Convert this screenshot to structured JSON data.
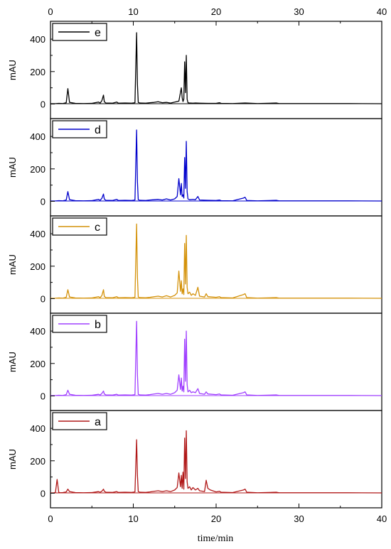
{
  "chart_data": {
    "type": "line",
    "xlabel": "time/min",
    "ylabel": "mAU",
    "xlim": [
      0,
      40
    ],
    "ylim": [
      -90,
      510
    ],
    "x_ticks": [
      0,
      10,
      20,
      30,
      40
    ],
    "x_tick_labels": [
      "0",
      "10",
      "20",
      "30",
      "40"
    ],
    "y_ticks": [
      0,
      200,
      400
    ],
    "y_tick_labels": [
      "0",
      "200",
      "400"
    ],
    "grid": false,
    "legend_placement": "top-left",
    "series": [
      {
        "name": "e",
        "color": "#000000",
        "baseline": 2,
        "x": [
          0.0,
          0.5,
          1.0,
          1.5,
          1.9,
          2.1,
          2.3,
          3.0,
          4.0,
          5.0,
          5.8,
          6.0,
          6.2,
          6.4,
          6.5,
          6.7,
          7.5,
          8.0,
          8.2,
          9.0,
          9.8,
          10.2,
          10.4,
          10.5,
          10.6,
          10.8,
          11.5,
          12.0,
          12.5,
          13.0,
          13.5,
          14.0,
          14.5,
          15.0,
          15.5,
          15.8,
          15.9,
          16.0,
          16.1,
          16.2,
          16.3,
          16.4,
          16.5,
          16.6,
          16.8,
          17.2,
          17.5,
          18.0,
          19.0,
          20.0,
          20.4,
          20.6,
          22.0,
          23.5,
          25.0,
          27.3,
          27.6,
          30.0,
          33.0,
          36.0,
          40.0
        ],
        "y": [
          2,
          2,
          4,
          3,
          8,
          95,
          10,
          4,
          3,
          4,
          12,
          6,
          20,
          55,
          14,
          6,
          5,
          12,
          5,
          6,
          5,
          8,
          440,
          120,
          10,
          6,
          5,
          8,
          10,
          14,
          8,
          10,
          6,
          12,
          18,
          100,
          40,
          15,
          30,
          260,
          70,
          300,
          30,
          8,
          6,
          5,
          6,
          5,
          4,
          4,
          8,
          4,
          3,
          6,
          3,
          6,
          3,
          3,
          3,
          3,
          2
        ]
      },
      {
        "name": "d",
        "color": "#0000cc",
        "baseline": 2,
        "x": [
          0.0,
          0.5,
          1.0,
          1.5,
          1.9,
          2.1,
          2.3,
          3.0,
          4.0,
          5.0,
          5.8,
          6.0,
          6.2,
          6.4,
          6.5,
          6.7,
          7.5,
          8.0,
          8.2,
          9.0,
          9.8,
          10.2,
          10.4,
          10.5,
          10.6,
          10.8,
          11.5,
          12.0,
          12.5,
          13.0,
          13.5,
          14.0,
          14.5,
          15.0,
          15.3,
          15.5,
          15.7,
          15.8,
          15.9,
          16.0,
          16.1,
          16.2,
          16.3,
          16.4,
          16.5,
          16.6,
          16.8,
          17.2,
          17.5,
          17.8,
          18.0,
          19.0,
          20.0,
          20.4,
          20.6,
          22.0,
          23.3,
          23.5,
          23.7,
          25.0,
          27.3,
          27.6,
          30.0,
          33.0,
          36.0,
          40.0
        ],
        "y": [
          2,
          2,
          4,
          3,
          8,
          60,
          10,
          4,
          3,
          4,
          12,
          6,
          18,
          45,
          14,
          6,
          5,
          12,
          5,
          6,
          5,
          8,
          440,
          120,
          10,
          6,
          5,
          8,
          10,
          12,
          8,
          15,
          8,
          15,
          30,
          140,
          40,
          110,
          30,
          40,
          20,
          270,
          80,
          370,
          60,
          15,
          10,
          12,
          10,
          30,
          8,
          6,
          5,
          8,
          4,
          3,
          20,
          25,
          5,
          3,
          6,
          3,
          3,
          3,
          3,
          2
        ]
      },
      {
        "name": "c",
        "color": "#d4920a",
        "baseline": 2,
        "x": [
          0.0,
          0.5,
          1.0,
          1.5,
          1.9,
          2.1,
          2.3,
          3.0,
          4.0,
          5.0,
          5.8,
          6.0,
          6.2,
          6.4,
          6.5,
          6.7,
          7.5,
          8.0,
          8.2,
          9.0,
          9.8,
          10.2,
          10.4,
          10.5,
          10.6,
          10.8,
          11.5,
          12.0,
          12.5,
          13.0,
          13.5,
          14.0,
          14.5,
          15.0,
          15.3,
          15.5,
          15.7,
          15.8,
          15.9,
          16.0,
          16.1,
          16.2,
          16.3,
          16.4,
          16.5,
          16.6,
          16.8,
          17.0,
          17.2,
          17.5,
          17.8,
          18.0,
          18.6,
          18.8,
          19.0,
          20.0,
          20.4,
          20.6,
          22.0,
          23.3,
          23.5,
          23.7,
          25.0,
          27.3,
          27.6,
          30.0,
          33.0,
          36.0,
          40.0
        ],
        "y": [
          2,
          2,
          4,
          3,
          8,
          55,
          10,
          4,
          3,
          4,
          12,
          6,
          18,
          55,
          14,
          6,
          5,
          12,
          5,
          6,
          5,
          8,
          460,
          130,
          10,
          6,
          5,
          8,
          12,
          15,
          10,
          18,
          10,
          20,
          35,
          170,
          45,
          110,
          30,
          60,
          25,
          340,
          90,
          390,
          70,
          30,
          40,
          20,
          30,
          20,
          70,
          15,
          10,
          30,
          12,
          8,
          12,
          6,
          4,
          25,
          30,
          6,
          3,
          6,
          3,
          3,
          3,
          3,
          2
        ]
      },
      {
        "name": "b",
        "color": "#a040ff",
        "baseline": 2,
        "x": [
          0.0,
          0.5,
          1.0,
          1.5,
          1.9,
          2.1,
          2.3,
          3.0,
          4.0,
          5.0,
          5.8,
          6.0,
          6.2,
          6.4,
          6.5,
          6.7,
          7.5,
          8.0,
          8.2,
          9.0,
          9.8,
          10.2,
          10.4,
          10.5,
          10.6,
          10.8,
          11.5,
          12.0,
          12.5,
          13.0,
          13.5,
          14.0,
          14.5,
          15.0,
          15.3,
          15.5,
          15.7,
          15.8,
          15.9,
          16.0,
          16.1,
          16.2,
          16.3,
          16.4,
          16.5,
          16.6,
          16.8,
          17.0,
          17.2,
          17.5,
          17.8,
          18.0,
          18.6,
          18.8,
          19.0,
          20.0,
          20.4,
          20.6,
          22.0,
          23.3,
          23.5,
          23.7,
          25.0,
          27.3,
          27.6,
          30.0,
          33.0,
          36.0,
          40.0
        ],
        "y": [
          2,
          2,
          4,
          3,
          8,
          35,
          10,
          4,
          3,
          4,
          10,
          6,
          15,
          30,
          12,
          6,
          5,
          10,
          5,
          6,
          5,
          8,
          460,
          130,
          10,
          6,
          5,
          8,
          12,
          15,
          10,
          15,
          10,
          20,
          35,
          130,
          40,
          110,
          30,
          60,
          25,
          350,
          90,
          400,
          70,
          25,
          35,
          20,
          25,
          20,
          45,
          15,
          10,
          25,
          12,
          8,
          12,
          6,
          4,
          20,
          25,
          6,
          3,
          6,
          3,
          3,
          3,
          3,
          2
        ]
      },
      {
        "name": "a",
        "color": "#b01818",
        "baseline": 2,
        "x": [
          0.0,
          0.4,
          0.6,
          0.8,
          1.0,
          1.2,
          1.5,
          1.9,
          2.1,
          2.3,
          3.0,
          4.0,
          5.0,
          5.8,
          6.0,
          6.2,
          6.4,
          6.5,
          6.7,
          7.5,
          8.0,
          8.2,
          9.0,
          9.8,
          10.2,
          10.4,
          10.5,
          10.6,
          10.8,
          11.5,
          12.0,
          12.5,
          13.0,
          13.5,
          14.0,
          14.5,
          15.0,
          15.3,
          15.5,
          15.7,
          15.8,
          15.9,
          16.0,
          16.1,
          16.2,
          16.3,
          16.4,
          16.5,
          16.6,
          16.8,
          17.0,
          17.2,
          17.5,
          17.8,
          18.0,
          18.6,
          18.8,
          19.0,
          19.3,
          20.0,
          20.4,
          20.6,
          22.0,
          23.3,
          23.5,
          23.7,
          25.0,
          27.3,
          27.6,
          30.0,
          33.0,
          36.0,
          40.0
        ],
        "y": [
          2,
          2,
          5,
          85,
          5,
          3,
          4,
          8,
          25,
          10,
          4,
          3,
          4,
          10,
          6,
          12,
          25,
          12,
          6,
          5,
          10,
          5,
          6,
          5,
          8,
          330,
          110,
          10,
          6,
          5,
          8,
          12,
          15,
          10,
          15,
          10,
          20,
          35,
          125,
          40,
          110,
          30,
          130,
          25,
          340,
          90,
          385,
          70,
          30,
          40,
          20,
          35,
          20,
          30,
          15,
          10,
          80,
          30,
          20,
          8,
          12,
          6,
          4,
          20,
          25,
          6,
          3,
          6,
          3,
          3,
          3,
          3,
          2
        ]
      }
    ]
  }
}
